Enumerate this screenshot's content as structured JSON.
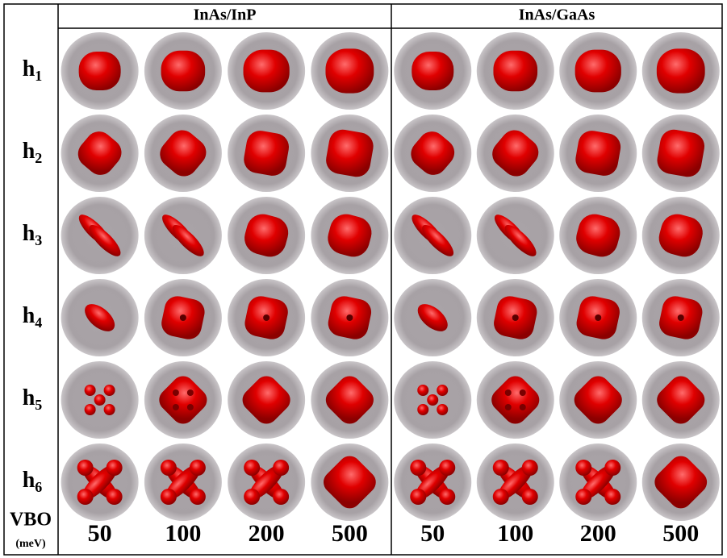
{
  "header": {
    "groups": [
      {
        "title": "InAs/InP",
        "vbo": [
          50,
          100,
          200,
          500
        ]
      },
      {
        "title": "InAs/GaAs",
        "vbo": [
          50,
          100,
          200,
          500
        ]
      }
    ]
  },
  "rows": [
    {
      "symbol": "h",
      "subscript": "1"
    },
    {
      "symbol": "h",
      "subscript": "2"
    },
    {
      "symbol": "h",
      "subscript": "3"
    },
    {
      "symbol": "h",
      "subscript": "4"
    },
    {
      "symbol": "h",
      "subscript": "5"
    },
    {
      "symbol": "h",
      "subscript": "6"
    }
  ],
  "footer": {
    "label": "VBO",
    "unit": "(meV)"
  }
}
